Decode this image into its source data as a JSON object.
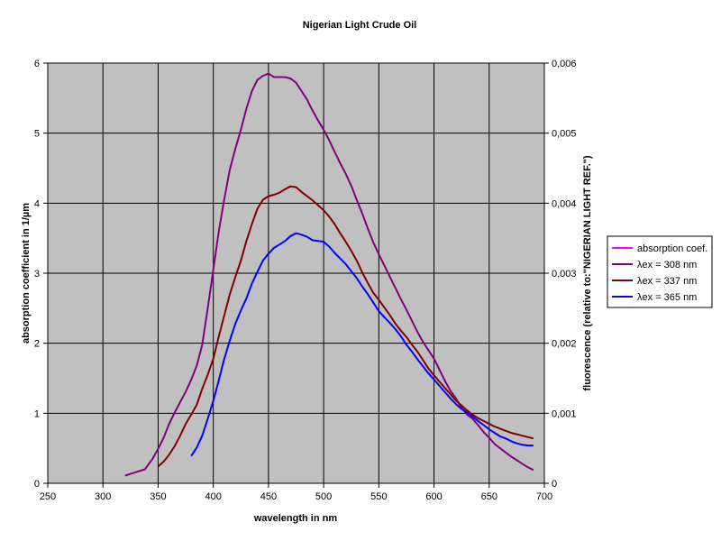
{
  "chart_data": {
    "type": "line",
    "title": "Nigerian Light Crude Oil",
    "xlabel": "wavelength in nm",
    "ylabel": "absorption coefficient in 1/µm",
    "y2label": "fluorescence (relative to:\"NIGERIAN LIGHT REF.\")",
    "xlim": [
      250,
      700
    ],
    "ylim": [
      0,
      6
    ],
    "y2lim": [
      0,
      0.006
    ],
    "x_ticks": [
      "250",
      "300",
      "350",
      "400",
      "450",
      "500",
      "550",
      "600",
      "650",
      "700"
    ],
    "y_ticks": [
      "0",
      "1",
      "2",
      "3",
      "4",
      "5",
      "6"
    ],
    "y2_ticks": [
      "0",
      "0,001",
      "0,002",
      "0,003",
      "0,004",
      "0,005",
      "0,006"
    ],
    "grid": true,
    "plot_background": "#c0c0c0",
    "legend_position": "right",
    "series": [
      {
        "name": "absorption coef.",
        "color": "#ff00ff",
        "axis": "left",
        "points": []
      },
      {
        "name": "λex = 308 nm",
        "color": "#800080",
        "axis": "right",
        "points": [
          [
            320,
            0.00011
          ],
          [
            330,
            0.00016
          ],
          [
            338,
            0.0002
          ],
          [
            345,
            0.00035
          ],
          [
            350,
            0.00049
          ],
          [
            355,
            0.00065
          ],
          [
            360,
            0.00085
          ],
          [
            365,
            0.00101
          ],
          [
            370,
            0.00116
          ],
          [
            375,
            0.00131
          ],
          [
            380,
            0.00148
          ],
          [
            385,
            0.00168
          ],
          [
            390,
            0.00198
          ],
          [
            395,
            0.0025
          ],
          [
            400,
            0.00305
          ],
          [
            405,
            0.0036
          ],
          [
            410,
            0.00406
          ],
          [
            415,
            0.00448
          ],
          [
            420,
            0.00478
          ],
          [
            425,
            0.00505
          ],
          [
            430,
            0.00535
          ],
          [
            435,
            0.0056
          ],
          [
            440,
            0.00576
          ],
          [
            445,
            0.00582
          ],
          [
            450,
            0.00585
          ],
          [
            455,
            0.0058
          ],
          [
            460,
            0.0058
          ],
          [
            465,
            0.0058
          ],
          [
            470,
            0.00578
          ],
          [
            475,
            0.00572
          ],
          [
            480,
            0.0056
          ],
          [
            485,
            0.00548
          ],
          [
            490,
            0.00532
          ],
          [
            495,
            0.00518
          ],
          [
            500,
            0.00505
          ],
          [
            505,
            0.0049
          ],
          [
            510,
            0.00473
          ],
          [
            515,
            0.00457
          ],
          [
            520,
            0.00442
          ],
          [
            525,
            0.00425
          ],
          [
            530,
            0.00405
          ],
          [
            535,
            0.00385
          ],
          [
            540,
            0.00364
          ],
          [
            545,
            0.00344
          ],
          [
            550,
            0.00327
          ],
          [
            555,
            0.00311
          ],
          [
            560,
            0.00295
          ],
          [
            565,
            0.00279
          ],
          [
            570,
            0.00263
          ],
          [
            575,
            0.00248
          ],
          [
            580,
            0.00232
          ],
          [
            585,
            0.00216
          ],
          [
            590,
            0.00202
          ],
          [
            595,
            0.0019
          ],
          [
            600,
            0.00178
          ],
          [
            605,
            0.00162
          ],
          [
            610,
            0.00146
          ],
          [
            615,
            0.00132
          ],
          [
            620,
            0.00121
          ],
          [
            625,
            0.00108
          ],
          [
            630,
            0.00098
          ],
          [
            635,
            0.00092
          ],
          [
            640,
            0.00083
          ],
          [
            645,
            0.00073
          ],
          [
            650,
            0.00065
          ],
          [
            655,
            0.00056
          ],
          [
            660,
            0.0005
          ],
          [
            665,
            0.00044
          ],
          [
            670,
            0.00038
          ],
          [
            675,
            0.00033
          ],
          [
            680,
            0.00028
          ],
          [
            685,
            0.00023
          ],
          [
            690,
            0.00019
          ]
        ]
      },
      {
        "name": "λex = 337 nm",
        "color": "#800000",
        "axis": "right",
        "points": [
          [
            350,
            0.00024
          ],
          [
            355,
            0.00031
          ],
          [
            360,
            0.00041
          ],
          [
            365,
            0.00053
          ],
          [
            370,
            0.00068
          ],
          [
            375,
            0.00085
          ],
          [
            380,
            0.00098
          ],
          [
            385,
            0.00112
          ],
          [
            390,
            0.00135
          ],
          [
            395,
            0.00155
          ],
          [
            400,
            0.00178
          ],
          [
            405,
            0.0021
          ],
          [
            410,
            0.0024
          ],
          [
            415,
            0.0027
          ],
          [
            420,
            0.00295
          ],
          [
            425,
            0.00318
          ],
          [
            430,
            0.00346
          ],
          [
            435,
            0.0037
          ],
          [
            440,
            0.00392
          ],
          [
            445,
            0.00405
          ],
          [
            450,
            0.0041
          ],
          [
            455,
            0.00412
          ],
          [
            460,
            0.00415
          ],
          [
            465,
            0.0042
          ],
          [
            470,
            0.00424
          ],
          [
            475,
            0.00423
          ],
          [
            480,
            0.00416
          ],
          [
            485,
            0.0041
          ],
          [
            490,
            0.00404
          ],
          [
            495,
            0.00397
          ],
          [
            500,
            0.0039
          ],
          [
            505,
            0.00381
          ],
          [
            510,
            0.0037
          ],
          [
            515,
            0.00357
          ],
          [
            520,
            0.00345
          ],
          [
            525,
            0.00332
          ],
          [
            530,
            0.00318
          ],
          [
            535,
            0.00301
          ],
          [
            540,
            0.00286
          ],
          [
            545,
            0.00272
          ],
          [
            550,
            0.00262
          ],
          [
            555,
            0.00251
          ],
          [
            560,
            0.0024
          ],
          [
            565,
            0.00228
          ],
          [
            570,
            0.00218
          ],
          [
            575,
            0.00209
          ],
          [
            580,
            0.00198
          ],
          [
            585,
            0.00188
          ],
          [
            590,
            0.00176
          ],
          [
            595,
            0.00164
          ],
          [
            600,
            0.00154
          ],
          [
            605,
            0.00145
          ],
          [
            610,
            0.00136
          ],
          [
            615,
            0.00127
          ],
          [
            620,
            0.00118
          ],
          [
            625,
            0.00111
          ],
          [
            630,
            0.00104
          ],
          [
            635,
            0.00098
          ],
          [
            640,
            0.00093
          ],
          [
            645,
            0.00089
          ],
          [
            650,
            0.00085
          ],
          [
            655,
            0.00081
          ],
          [
            660,
            0.00078
          ],
          [
            665,
            0.00075
          ],
          [
            670,
            0.00072
          ],
          [
            675,
            0.0007
          ],
          [
            680,
            0.00068
          ],
          [
            685,
            0.00066
          ],
          [
            690,
            0.00064
          ]
        ]
      },
      {
        "name": "λex = 365 nm",
        "color": "#0000ff",
        "axis": "right",
        "points": [
          [
            380,
            0.00039
          ],
          [
            385,
            0.00051
          ],
          [
            390,
            0.00068
          ],
          [
            395,
            0.00092
          ],
          [
            400,
            0.00118
          ],
          [
            405,
            0.00147
          ],
          [
            410,
            0.00178
          ],
          [
            415,
            0.00204
          ],
          [
            420,
            0.00228
          ],
          [
            425,
            0.00247
          ],
          [
            430,
            0.00264
          ],
          [
            435,
            0.00285
          ],
          [
            440,
            0.00302
          ],
          [
            445,
            0.00318
          ],
          [
            450,
            0.00328
          ],
          [
            455,
            0.00336
          ],
          [
            460,
            0.00341
          ],
          [
            465,
            0.00346
          ],
          [
            470,
            0.00353
          ],
          [
            475,
            0.00357
          ],
          [
            480,
            0.00355
          ],
          [
            485,
            0.00352
          ],
          [
            490,
            0.00347
          ],
          [
            495,
            0.00346
          ],
          [
            500,
            0.00345
          ],
          [
            505,
            0.00338
          ],
          [
            510,
            0.00329
          ],
          [
            515,
            0.00321
          ],
          [
            520,
            0.00313
          ],
          [
            525,
            0.00303
          ],
          [
            530,
            0.00293
          ],
          [
            535,
            0.00281
          ],
          [
            540,
            0.0027
          ],
          [
            545,
            0.00258
          ],
          [
            550,
            0.00246
          ],
          [
            555,
            0.00237
          ],
          [
            560,
            0.00229
          ],
          [
            565,
            0.0022
          ],
          [
            570,
            0.0021
          ],
          [
            575,
            0.00198
          ],
          [
            580,
            0.00188
          ],
          [
            585,
            0.00177
          ],
          [
            590,
            0.00167
          ],
          [
            595,
            0.00157
          ],
          [
            600,
            0.00148
          ],
          [
            605,
            0.00139
          ],
          [
            610,
            0.0013
          ],
          [
            615,
            0.00121
          ],
          [
            620,
            0.00113
          ],
          [
            625,
            0.00106
          ],
          [
            630,
            0.00101
          ],
          [
            635,
            0.00095
          ],
          [
            640,
            0.00089
          ],
          [
            645,
            0.00083
          ],
          [
            650,
            0.00077
          ],
          [
            655,
            0.00072
          ],
          [
            660,
            0.00067
          ],
          [
            665,
            0.00064
          ],
          [
            670,
            0.0006
          ],
          [
            675,
            0.00057
          ],
          [
            680,
            0.00055
          ],
          [
            685,
            0.00054
          ],
          [
            690,
            0.00054
          ]
        ]
      }
    ]
  }
}
